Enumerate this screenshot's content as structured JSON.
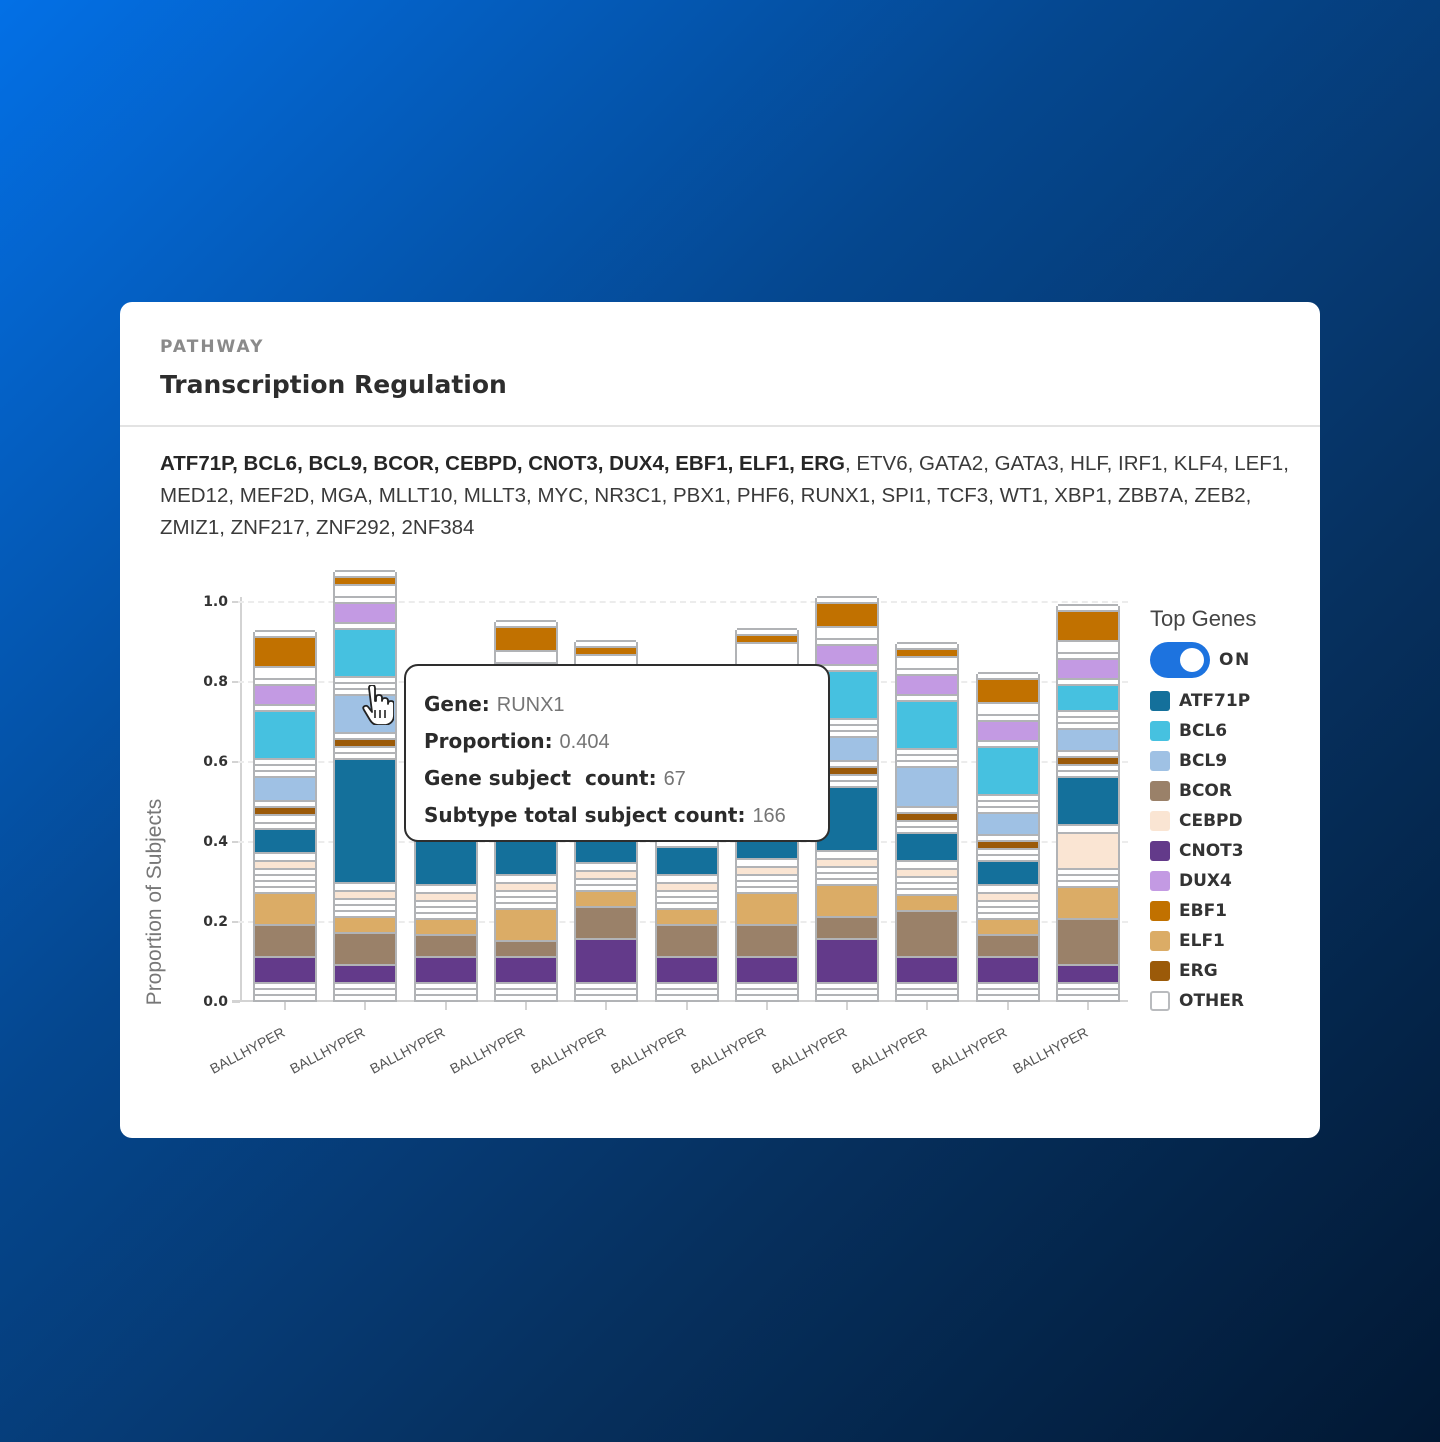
{
  "card": {
    "eyebrow": "PATHWAY",
    "title": "Transcription Regulation",
    "genes_bold": "ATF71P, BCL6, BCL9, BCOR, CEBPD, CNOT3, DUX4, EBF1, ELF1, ERG",
    "genes_rest": ", ETV6, GATA2, GATA3, HLF, IRF1, KLF4, LEF1, MED12, MEF2D, MGA, MLLT10, MLLT3, MYC, NR3C1, PBX1, PHF6, RUNX1, SPI1, TCF3, WT1, XBP1, ZBB7A, ZEB2, ZMIZ1, ZNF217, ZNF292, 2NF384"
  },
  "legend": {
    "title": "Top Genes",
    "toggle_label": "ON",
    "toggle_on": true,
    "items": [
      {
        "label": "ATF71P",
        "color": "#14709b"
      },
      {
        "label": "BCL6",
        "color": "#46c1e0"
      },
      {
        "label": "BCL9",
        "color": "#9fc1e4"
      },
      {
        "label": "BCOR",
        "color": "#9a8169"
      },
      {
        "label": "CEBPD",
        "color": "#fae5d3"
      },
      {
        "label": "CNOT3",
        "color": "#633a8a"
      },
      {
        "label": "DUX4",
        "color": "#c39ae3"
      },
      {
        "label": "EBF1",
        "color": "#c17100"
      },
      {
        "label": "ELF1",
        "color": "#dbac66"
      },
      {
        "label": "ERG",
        "color": "#9b5a09"
      },
      {
        "label": "OTHER",
        "color": "#ffffff"
      }
    ]
  },
  "tooltip": {
    "rows": [
      {
        "label": "Gene:",
        "value": "RUNX1"
      },
      {
        "label": "Proportion:",
        "value": "0.404"
      },
      {
        "label": "Gene subject  count:",
        "value": "67"
      },
      {
        "label": "Subtype total subject count:",
        "value": "166"
      }
    ]
  },
  "chart_data": {
    "type": "bar",
    "stacked": true,
    "title": "",
    "xlabel": "",
    "ylabel": "Proportion of Subjects",
    "ylim": [
      0,
      1.0
    ],
    "yticks": [
      "0.0",
      "0.2",
      "0.4",
      "0.6",
      "0.8",
      "1.0"
    ],
    "grid": true,
    "legend_position": "right",
    "categories": [
      "BALLHYPER",
      "BALLHYPER",
      "BALLHYPER",
      "BALLHYPER",
      "BALLHYPER",
      "BALLHYPER",
      "BALLHYPER",
      "BALLHYPER",
      "BALLHYPER",
      "BALLHYPER",
      "BALLHYPER"
    ],
    "totals": [
      0.88,
      1.06,
      0.72,
      1.03,
      0.89,
      0.76,
      0.9,
      0.985,
      0.875,
      0.8,
      0.97
    ],
    "bars": [
      [
        [
          "OTHER",
          0.015
        ],
        [
          "OTHER",
          0.015
        ],
        [
          "OTHER",
          0.015
        ],
        [
          "CNOT3",
          0.065
        ],
        [
          "BCOR",
          0.08
        ],
        [
          "ELF1",
          0.08
        ],
        [
          "OTHER",
          0.015
        ],
        [
          "OTHER",
          0.015
        ],
        [
          "OTHER",
          0.015
        ],
        [
          "OTHER",
          0.015
        ],
        [
          "CEBPD",
          0.02
        ],
        [
          "OTHER",
          0.02
        ],
        [
          "ATF71P",
          0.06
        ],
        [
          "OTHER",
          0.015
        ],
        [
          "OTHER",
          0.02
        ],
        [
          "ERG",
          0.02
        ],
        [
          "OTHER",
          0.015
        ],
        [
          "BCL9",
          0.06
        ],
        [
          "OTHER",
          0.015
        ],
        [
          "OTHER",
          0.015
        ],
        [
          "OTHER",
          0.015
        ],
        [
          "BCL6",
          0.12
        ],
        [
          "OTHER",
          0.015
        ],
        [
          "DUX4",
          0.05
        ],
        [
          "OTHER",
          0.015
        ],
        [
          "OTHER",
          0.03
        ],
        [
          "EBF1",
          0.075
        ],
        [
          "OTHER",
          0.015
        ]
      ],
      [
        [
          "OTHER",
          0.015
        ],
        [
          "OTHER",
          0.015
        ],
        [
          "OTHER",
          0.015
        ],
        [
          "CNOT3",
          0.045
        ],
        [
          "BCOR",
          0.08
        ],
        [
          "ELF1",
          0.04
        ],
        [
          "OTHER",
          0.015
        ],
        [
          "OTHER",
          0.015
        ],
        [
          "OTHER",
          0.015
        ],
        [
          "CEBPD",
          0.02
        ],
        [
          "OTHER",
          0.02
        ],
        [
          "ATF71P",
          0.31
        ],
        [
          "OTHER",
          0.015
        ],
        [
          "OTHER",
          0.015
        ],
        [
          "ERG",
          0.02
        ],
        [
          "OTHER",
          0.015
        ],
        [
          "BCL9",
          0.095
        ],
        [
          "OTHER",
          0.015
        ],
        [
          "OTHER",
          0.015
        ],
        [
          "OTHER",
          0.015
        ],
        [
          "BCL6",
          0.12
        ],
        [
          "OTHER",
          0.015
        ],
        [
          "DUX4",
          0.05
        ],
        [
          "OTHER",
          0.015
        ],
        [
          "OTHER",
          0.03
        ],
        [
          "EBF1",
          0.02
        ],
        [
          "OTHER",
          0.015
        ]
      ],
      [
        [
          "OTHER",
          0.015
        ],
        [
          "OTHER",
          0.015
        ],
        [
          "OTHER",
          0.015
        ],
        [
          "CNOT3",
          0.065
        ],
        [
          "BCOR",
          0.055
        ],
        [
          "ELF1",
          0.04
        ],
        [
          "OTHER",
          0.015
        ],
        [
          "OTHER",
          0.015
        ],
        [
          "OTHER",
          0.015
        ],
        [
          "CEBPD",
          0.02
        ],
        [
          "OTHER",
          0.02
        ],
        [
          "ATF71P",
          0.2
        ],
        [
          "OTHER",
          0.2
        ]
      ],
      [
        [
          "OTHER",
          0.015
        ],
        [
          "OTHER",
          0.015
        ],
        [
          "OTHER",
          0.015
        ],
        [
          "CNOT3",
          0.065
        ],
        [
          "BCOR",
          0.04
        ],
        [
          "ELF1",
          0.08
        ],
        [
          "OTHER",
          0.015
        ],
        [
          "OTHER",
          0.015
        ],
        [
          "OTHER",
          0.015
        ],
        [
          "CEBPD",
          0.02
        ],
        [
          "OTHER",
          0.02
        ],
        [
          "ATF71P",
          0.16
        ],
        [
          "OTHER",
          0.27
        ],
        [
          "BCL6",
          0.02
        ],
        [
          "OTHER",
          0.015
        ],
        [
          "DUX4",
          0.05
        ],
        [
          "OTHER",
          0.015
        ],
        [
          "OTHER",
          0.03
        ],
        [
          "EBF1",
          0.06
        ],
        [
          "OTHER",
          0.015
        ]
      ],
      [
        [
          "OTHER",
          0.015
        ],
        [
          "OTHER",
          0.015
        ],
        [
          "OTHER",
          0.015
        ],
        [
          "CNOT3",
          0.11
        ],
        [
          "BCOR",
          0.08
        ],
        [
          "ELF1",
          0.04
        ],
        [
          "OTHER",
          0.015
        ],
        [
          "OTHER",
          0.015
        ],
        [
          "CEBPD",
          0.02
        ],
        [
          "OTHER",
          0.02
        ],
        [
          "ATF71P",
          0.06
        ],
        [
          "OTHER",
          0.46
        ],
        [
          "EBF1",
          0.02
        ],
        [
          "OTHER",
          0.015
        ]
      ],
      [
        [
          "OTHER",
          0.015
        ],
        [
          "OTHER",
          0.015
        ],
        [
          "OTHER",
          0.015
        ],
        [
          "CNOT3",
          0.065
        ],
        [
          "BCOR",
          0.08
        ],
        [
          "ELF1",
          0.04
        ],
        [
          "OTHER",
          0.015
        ],
        [
          "OTHER",
          0.015
        ],
        [
          "OTHER",
          0.015
        ],
        [
          "CEBPD",
          0.02
        ],
        [
          "OTHER",
          0.02
        ],
        [
          "ATF71P",
          0.07
        ],
        [
          "OTHER",
          0.38
        ]
      ],
      [
        [
          "OTHER",
          0.015
        ],
        [
          "OTHER",
          0.015
        ],
        [
          "OTHER",
          0.015
        ],
        [
          "CNOT3",
          0.065
        ],
        [
          "BCOR",
          0.08
        ],
        [
          "ELF1",
          0.08
        ],
        [
          "OTHER",
          0.015
        ],
        [
          "OTHER",
          0.015
        ],
        [
          "OTHER",
          0.015
        ],
        [
          "CEBPD",
          0.02
        ],
        [
          "OTHER",
          0.02
        ],
        [
          "ATF71P",
          0.07
        ],
        [
          "OTHER",
          0.47
        ],
        [
          "EBF1",
          0.02
        ],
        [
          "OTHER",
          0.015
        ]
      ],
      [
        [
          "OTHER",
          0.015
        ],
        [
          "OTHER",
          0.015
        ],
        [
          "OTHER",
          0.015
        ],
        [
          "CNOT3",
          0.11
        ],
        [
          "BCOR",
          0.055
        ],
        [
          "ELF1",
          0.08
        ],
        [
          "OTHER",
          0.015
        ],
        [
          "OTHER",
          0.015
        ],
        [
          "OTHER",
          0.015
        ],
        [
          "CEBPD",
          0.02
        ],
        [
          "OTHER",
          0.02
        ],
        [
          "ATF71P",
          0.16
        ],
        [
          "OTHER",
          0.015
        ],
        [
          "OTHER",
          0.015
        ],
        [
          "ERG",
          0.02
        ],
        [
          "OTHER",
          0.015
        ],
        [
          "BCL9",
          0.06
        ],
        [
          "OTHER",
          0.015
        ],
        [
          "OTHER",
          0.015
        ],
        [
          "OTHER",
          0.015
        ],
        [
          "BCL6",
          0.12
        ],
        [
          "OTHER",
          0.015
        ],
        [
          "DUX4",
          0.05
        ],
        [
          "OTHER",
          0.015
        ],
        [
          "OTHER",
          0.03
        ],
        [
          "EBF1",
          0.06
        ],
        [
          "OTHER",
          0.015
        ]
      ],
      [
        [
          "OTHER",
          0.015
        ],
        [
          "OTHER",
          0.015
        ],
        [
          "OTHER",
          0.015
        ],
        [
          "CNOT3",
          0.065
        ],
        [
          "BCOR",
          0.115
        ],
        [
          "ELF1",
          0.04
        ],
        [
          "OTHER",
          0.015
        ],
        [
          "OTHER",
          0.015
        ],
        [
          "OTHER",
          0.015
        ],
        [
          "CEBPD",
          0.02
        ],
        [
          "OTHER",
          0.02
        ],
        [
          "ATF71P",
          0.07
        ],
        [
          "OTHER",
          0.015
        ],
        [
          "OTHER",
          0.015
        ],
        [
          "ERG",
          0.02
        ],
        [
          "OTHER",
          0.015
        ],
        [
          "BCL9",
          0.1
        ],
        [
          "OTHER",
          0.015
        ],
        [
          "OTHER",
          0.015
        ],
        [
          "OTHER",
          0.015
        ],
        [
          "BCL6",
          0.12
        ],
        [
          "OTHER",
          0.015
        ],
        [
          "DUX4",
          0.05
        ],
        [
          "OTHER",
          0.015
        ],
        [
          "OTHER",
          0.03
        ],
        [
          "EBF1",
          0.02
        ],
        [
          "OTHER",
          0.015
        ]
      ],
      [
        [
          "OTHER",
          0.015
        ],
        [
          "OTHER",
          0.015
        ],
        [
          "OTHER",
          0.015
        ],
        [
          "CNOT3",
          0.065
        ],
        [
          "BCOR",
          0.055
        ],
        [
          "ELF1",
          0.04
        ],
        [
          "OTHER",
          0.015
        ],
        [
          "OTHER",
          0.015
        ],
        [
          "OTHER",
          0.015
        ],
        [
          "CEBPD",
          0.02
        ],
        [
          "OTHER",
          0.02
        ],
        [
          "ATF71P",
          0.06
        ],
        [
          "OTHER",
          0.015
        ],
        [
          "OTHER",
          0.015
        ],
        [
          "ERG",
          0.02
        ],
        [
          "OTHER",
          0.015
        ],
        [
          "BCL9",
          0.055
        ],
        [
          "OTHER",
          0.015
        ],
        [
          "OTHER",
          0.015
        ],
        [
          "OTHER",
          0.015
        ],
        [
          "BCL6",
          0.12
        ],
        [
          "OTHER",
          0.015
        ],
        [
          "DUX4",
          0.05
        ],
        [
          "OTHER",
          0.015
        ],
        [
          "OTHER",
          0.03
        ],
        [
          "EBF1",
          0.06
        ],
        [
          "OTHER",
          0.015
        ]
      ],
      [
        [
          "OTHER",
          0.015
        ],
        [
          "OTHER",
          0.015
        ],
        [
          "OTHER",
          0.015
        ],
        [
          "CNOT3",
          0.045
        ],
        [
          "BCOR",
          0.115
        ],
        [
          "ELF1",
          0.08
        ],
        [
          "OTHER",
          0.015
        ],
        [
          "OTHER",
          0.015
        ],
        [
          "OTHER",
          0.015
        ],
        [
          "CEBPD",
          0.09
        ],
        [
          "OTHER",
          0.02
        ],
        [
          "ATF71P",
          0.12
        ],
        [
          "OTHER",
          0.015
        ],
        [
          "OTHER",
          0.015
        ],
        [
          "ERG",
          0.02
        ],
        [
          "OTHER",
          0.015
        ],
        [
          "BCL9",
          0.055
        ],
        [
          "OTHER",
          0.015
        ],
        [
          "OTHER",
          0.015
        ],
        [
          "OTHER",
          0.015
        ],
        [
          "BCL6",
          0.065
        ],
        [
          "OTHER",
          0.015
        ],
        [
          "DUX4",
          0.05
        ],
        [
          "OTHER",
          0.015
        ],
        [
          "OTHER",
          0.03
        ],
        [
          "EBF1",
          0.075
        ],
        [
          "OTHER",
          0.015
        ]
      ]
    ]
  }
}
